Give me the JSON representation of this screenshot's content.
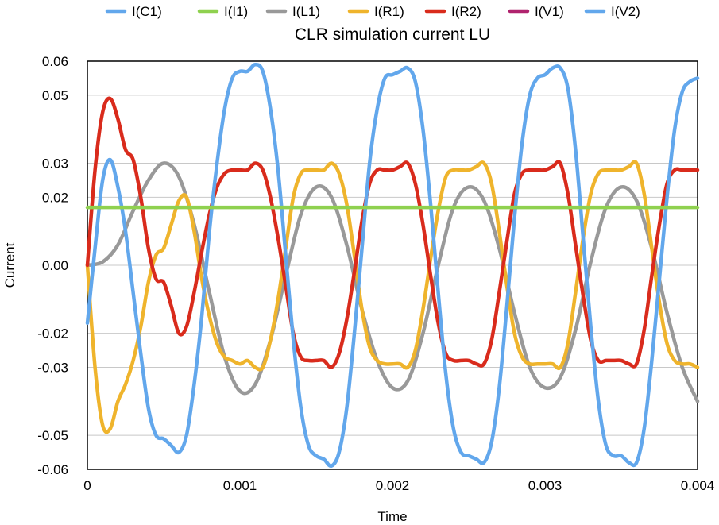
{
  "chart_data": {
    "type": "line",
    "title": "CLR simulation current LU",
    "xlabel": "Time",
    "ylabel": "Current",
    "xlim": [
      0,
      0.004
    ],
    "ylim": [
      -0.06,
      0.06
    ],
    "x_ticks": [
      0,
      0.001,
      0.002,
      0.003,
      0.004
    ],
    "x_tick_labels": [
      "0",
      "0.001",
      "0.002",
      "0.003",
      "0.004"
    ],
    "y_ticks": [
      0.06,
      0.05,
      0.03,
      0.02,
      0.0,
      -0.02,
      -0.03,
      -0.05,
      -0.06
    ],
    "y_tick_labels": [
      "0.06",
      "0.05",
      "0.03",
      "0.02",
      "0.00",
      "-0.02",
      "-0.03",
      "-0.05",
      "-0.06"
    ],
    "grid": "horizontal",
    "legend_position": "top",
    "series": [
      {
        "name": "I(C1)",
        "color": "#62a7ec",
        "points": [
          [
            0,
            -0.017
          ],
          [
            5e-05,
            0.005
          ],
          [
            0.0001,
            0.025
          ],
          [
            0.00015,
            0.031
          ],
          [
            0.0002,
            0.023
          ],
          [
            0.00025,
            0.01
          ],
          [
            0.0003,
            -0.008
          ],
          [
            0.00035,
            -0.026
          ],
          [
            0.0004,
            -0.042
          ],
          [
            0.00045,
            -0.05
          ],
          [
            0.0005,
            -0.051
          ],
          [
            0.00055,
            -0.053
          ],
          [
            0.0006,
            -0.055
          ],
          [
            0.00065,
            -0.05
          ],
          [
            0.0007,
            -0.035
          ],
          [
            0.00075,
            -0.015
          ],
          [
            0.0008,
            0.01
          ],
          [
            0.00085,
            0.03
          ],
          [
            0.0009,
            0.046
          ],
          [
            0.00095,
            0.055
          ],
          [
            0.001,
            0.057
          ],
          [
            0.00105,
            0.057
          ],
          [
            0.0011,
            0.059
          ],
          [
            0.00115,
            0.057
          ],
          [
            0.0012,
            0.046
          ],
          [
            0.00125,
            0.028
          ],
          [
            0.0013,
            0.003
          ],
          [
            0.00135,
            -0.022
          ],
          [
            0.0014,
            -0.042
          ],
          [
            0.00145,
            -0.053
          ],
          [
            0.0015,
            -0.056
          ],
          [
            0.00155,
            -0.057
          ],
          [
            0.0016,
            -0.059
          ],
          [
            0.00165,
            -0.055
          ],
          [
            0.0017,
            -0.042
          ],
          [
            0.00175,
            -0.02
          ],
          [
            0.0018,
            0.005
          ],
          [
            0.00185,
            0.03
          ],
          [
            0.0019,
            0.046
          ],
          [
            0.00195,
            0.055
          ],
          [
            0.002,
            0.056
          ],
          [
            0.00205,
            0.057
          ],
          [
            0.0021,
            0.058
          ],
          [
            0.00215,
            0.054
          ],
          [
            0.0022,
            0.04
          ],
          [
            0.00225,
            0.018
          ],
          [
            0.0023,
            -0.008
          ],
          [
            0.00235,
            -0.032
          ],
          [
            0.0024,
            -0.048
          ],
          [
            0.00245,
            -0.055
          ],
          [
            0.0025,
            -0.056
          ],
          [
            0.00255,
            -0.057
          ],
          [
            0.0026,
            -0.058
          ],
          [
            0.00265,
            -0.052
          ],
          [
            0.0027,
            -0.036
          ],
          [
            0.00275,
            -0.012
          ],
          [
            0.0028,
            0.014
          ],
          [
            0.00285,
            0.036
          ],
          [
            0.0029,
            0.05
          ],
          [
            0.00295,
            0.055
          ],
          [
            0.003,
            0.056
          ],
          [
            0.00305,
            0.058
          ],
          [
            0.0031,
            0.058
          ],
          [
            0.00315,
            0.052
          ],
          [
            0.0032,
            0.034
          ],
          [
            0.00325,
            0.008
          ],
          [
            0.0033,
            -0.018
          ],
          [
            0.00335,
            -0.04
          ],
          [
            0.0034,
            -0.053
          ],
          [
            0.00345,
            -0.056
          ],
          [
            0.0035,
            -0.056
          ],
          [
            0.00355,
            -0.058
          ],
          [
            0.0036,
            -0.058
          ],
          [
            0.00365,
            -0.048
          ],
          [
            0.0037,
            -0.028
          ],
          [
            0.00375,
            -0.004
          ],
          [
            0.0038,
            0.02
          ],
          [
            0.00385,
            0.04
          ],
          [
            0.0039,
            0.051
          ],
          [
            0.00395,
            0.054
          ],
          [
            0.004,
            0.055
          ]
        ]
      },
      {
        "name": "I(I1)",
        "color": "#8fd14f",
        "points": [
          [
            0,
            0.017
          ],
          [
            0.004,
            0.017
          ]
        ]
      },
      {
        "name": "I(L1)",
        "color": "#999999",
        "points": [
          [
            0,
            0.0
          ],
          [
            0.0001,
            0.001
          ],
          [
            0.0002,
            0.006
          ],
          [
            0.0003,
            0.016
          ],
          [
            0.0004,
            0.025
          ],
          [
            0.0005,
            0.03
          ],
          [
            0.0006,
            0.026
          ],
          [
            0.0007,
            0.012
          ],
          [
            0.0008,
            -0.008
          ],
          [
            0.0009,
            -0.027
          ],
          [
            0.001,
            -0.037
          ],
          [
            0.0011,
            -0.035
          ],
          [
            0.0012,
            -0.022
          ],
          [
            0.0013,
            -0.003
          ],
          [
            0.0014,
            0.015
          ],
          [
            0.0015,
            0.023
          ],
          [
            0.0016,
            0.02
          ],
          [
            0.0017,
            0.006
          ],
          [
            0.0018,
            -0.013
          ],
          [
            0.0019,
            -0.028
          ],
          [
            0.002,
            -0.036
          ],
          [
            0.0021,
            -0.034
          ],
          [
            0.0022,
            -0.02
          ],
          [
            0.0023,
            0.0
          ],
          [
            0.0024,
            0.017
          ],
          [
            0.0025,
            0.023
          ],
          [
            0.0026,
            0.019
          ],
          [
            0.0027,
            0.005
          ],
          [
            0.0028,
            -0.014
          ],
          [
            0.0029,
            -0.03
          ],
          [
            0.003,
            -0.036
          ],
          [
            0.0031,
            -0.033
          ],
          [
            0.0032,
            -0.019
          ],
          [
            0.0033,
            0.001
          ],
          [
            0.0034,
            0.017
          ],
          [
            0.0035,
            0.023
          ],
          [
            0.0036,
            0.019
          ],
          [
            0.0037,
            0.005
          ],
          [
            0.0038,
            -0.014
          ],
          [
            0.0039,
            -0.03
          ],
          [
            0.004,
            -0.04
          ]
        ]
      },
      {
        "name": "I(R1)",
        "color": "#efb42c",
        "points": [
          [
            0,
            0.0
          ],
          [
            5e-05,
            -0.03
          ],
          [
            0.0001,
            -0.047
          ],
          [
            0.00015,
            -0.048
          ],
          [
            0.0002,
            -0.04
          ],
          [
            0.00025,
            -0.035
          ],
          [
            0.0003,
            -0.028
          ],
          [
            0.00035,
            -0.018
          ],
          [
            0.0004,
            -0.005
          ],
          [
            0.00045,
            0.003
          ],
          [
            0.0005,
            0.005
          ],
          [
            0.00055,
            0.012
          ],
          [
            0.0006,
            0.019
          ],
          [
            0.00065,
            0.02
          ],
          [
            0.0007,
            0.01
          ],
          [
            0.00075,
            -0.004
          ],
          [
            0.0008,
            -0.015
          ],
          [
            0.00085,
            -0.023
          ],
          [
            0.0009,
            -0.027
          ],
          [
            0.00095,
            -0.028
          ],
          [
            0.001,
            -0.029
          ],
          [
            0.00105,
            -0.028
          ],
          [
            0.0011,
            -0.03
          ],
          [
            0.00115,
            -0.03
          ],
          [
            0.0012,
            -0.022
          ],
          [
            0.00125,
            -0.01
          ],
          [
            0.0013,
            0.005
          ],
          [
            0.00135,
            0.02
          ],
          [
            0.0014,
            0.027
          ],
          [
            0.00145,
            0.028
          ],
          [
            0.0015,
            0.028
          ],
          [
            0.00155,
            0.028
          ],
          [
            0.0016,
            0.03
          ],
          [
            0.00165,
            0.027
          ],
          [
            0.0017,
            0.018
          ],
          [
            0.00175,
            0.003
          ],
          [
            0.0018,
            -0.013
          ],
          [
            0.00185,
            -0.024
          ],
          [
            0.0019,
            -0.028
          ],
          [
            0.00195,
            -0.029
          ],
          [
            0.002,
            -0.029
          ],
          [
            0.00205,
            -0.029
          ],
          [
            0.0021,
            -0.03
          ],
          [
            0.00215,
            -0.025
          ],
          [
            0.0022,
            -0.013
          ],
          [
            0.00225,
            0.002
          ],
          [
            0.0023,
            0.016
          ],
          [
            0.00235,
            0.026
          ],
          [
            0.0024,
            0.028
          ],
          [
            0.00245,
            0.028
          ],
          [
            0.0025,
            0.028
          ],
          [
            0.00255,
            0.029
          ],
          [
            0.0026,
            0.03
          ],
          [
            0.00265,
            0.024
          ],
          [
            0.0027,
            0.01
          ],
          [
            0.00275,
            -0.006
          ],
          [
            0.0028,
            -0.02
          ],
          [
            0.00285,
            -0.027
          ],
          [
            0.0029,
            -0.029
          ],
          [
            0.00295,
            -0.029
          ],
          [
            0.003,
            -0.029
          ],
          [
            0.00305,
            -0.029
          ],
          [
            0.0031,
            -0.03
          ],
          [
            0.00315,
            -0.023
          ],
          [
            0.0032,
            -0.008
          ],
          [
            0.00325,
            0.008
          ],
          [
            0.0033,
            0.021
          ],
          [
            0.00335,
            0.027
          ],
          [
            0.0034,
            0.028
          ],
          [
            0.00345,
            0.028
          ],
          [
            0.0035,
            0.028
          ],
          [
            0.00355,
            0.029
          ],
          [
            0.0036,
            0.03
          ],
          [
            0.00365,
            0.021
          ],
          [
            0.0037,
            0.005
          ],
          [
            0.00375,
            -0.011
          ],
          [
            0.0038,
            -0.023
          ],
          [
            0.00385,
            -0.028
          ],
          [
            0.0039,
            -0.029
          ],
          [
            0.00395,
            -0.029
          ],
          [
            0.004,
            -0.03
          ]
        ]
      },
      {
        "name": "I(R2)",
        "color": "#d92b1c",
        "points": [
          [
            0,
            0.0
          ],
          [
            5e-05,
            0.028
          ],
          [
            0.0001,
            0.045
          ],
          [
            0.00015,
            0.049
          ],
          [
            0.0002,
            0.043
          ],
          [
            0.00025,
            0.034
          ],
          [
            0.0003,
            0.031
          ],
          [
            0.00035,
            0.02
          ],
          [
            0.0004,
            0.005
          ],
          [
            0.00045,
            -0.004
          ],
          [
            0.0005,
            -0.005
          ],
          [
            0.00055,
            -0.012
          ],
          [
            0.0006,
            -0.02
          ],
          [
            0.00065,
            -0.018
          ],
          [
            0.0007,
            -0.008
          ],
          [
            0.00075,
            0.004
          ],
          [
            0.0008,
            0.015
          ],
          [
            0.00085,
            0.023
          ],
          [
            0.0009,
            0.027
          ],
          [
            0.00095,
            0.028
          ],
          [
            0.001,
            0.028
          ],
          [
            0.00105,
            0.028
          ],
          [
            0.0011,
            0.03
          ],
          [
            0.00115,
            0.028
          ],
          [
            0.0012,
            0.02
          ],
          [
            0.00125,
            0.008
          ],
          [
            0.0013,
            -0.006
          ],
          [
            0.00135,
            -0.02
          ],
          [
            0.0014,
            -0.027
          ],
          [
            0.00145,
            -0.028
          ],
          [
            0.0015,
            -0.028
          ],
          [
            0.00155,
            -0.028
          ],
          [
            0.0016,
            -0.03
          ],
          [
            0.00165,
            -0.026
          ],
          [
            0.0017,
            -0.016
          ],
          [
            0.00175,
            -0.002
          ],
          [
            0.0018,
            0.013
          ],
          [
            0.00185,
            0.024
          ],
          [
            0.0019,
            0.028
          ],
          [
            0.00195,
            0.028
          ],
          [
            0.002,
            0.028
          ],
          [
            0.00205,
            0.029
          ],
          [
            0.0021,
            0.03
          ],
          [
            0.00215,
            0.024
          ],
          [
            0.0022,
            0.012
          ],
          [
            0.00225,
            -0.003
          ],
          [
            0.0023,
            -0.017
          ],
          [
            0.00235,
            -0.026
          ],
          [
            0.0024,
            -0.028
          ],
          [
            0.00245,
            -0.028
          ],
          [
            0.0025,
            -0.028
          ],
          [
            0.00255,
            -0.029
          ],
          [
            0.0026,
            -0.029
          ],
          [
            0.00265,
            -0.022
          ],
          [
            0.0027,
            -0.008
          ],
          [
            0.00275,
            0.007
          ],
          [
            0.0028,
            0.021
          ],
          [
            0.00285,
            0.027
          ],
          [
            0.0029,
            0.028
          ],
          [
            0.00295,
            0.028
          ],
          [
            0.003,
            0.028
          ],
          [
            0.00305,
            0.029
          ],
          [
            0.0031,
            0.03
          ],
          [
            0.00315,
            0.021
          ],
          [
            0.0032,
            0.006
          ],
          [
            0.00325,
            -0.009
          ],
          [
            0.0033,
            -0.022
          ],
          [
            0.00335,
            -0.028
          ],
          [
            0.0034,
            -0.028
          ],
          [
            0.00345,
            -0.028
          ],
          [
            0.0035,
            -0.028
          ],
          [
            0.00355,
            -0.029
          ],
          [
            0.0036,
            -0.029
          ],
          [
            0.00365,
            -0.019
          ],
          [
            0.0037,
            -0.003
          ],
          [
            0.00375,
            0.012
          ],
          [
            0.0038,
            0.024
          ],
          [
            0.00385,
            0.028
          ],
          [
            0.0039,
            0.028
          ],
          [
            0.00395,
            0.028
          ],
          [
            0.004,
            0.028
          ]
        ]
      },
      {
        "name": "I(V1)",
        "color": "#b0236e",
        "points": []
      },
      {
        "name": "I(V2)",
        "color": "#62a7ec",
        "points": []
      }
    ]
  }
}
